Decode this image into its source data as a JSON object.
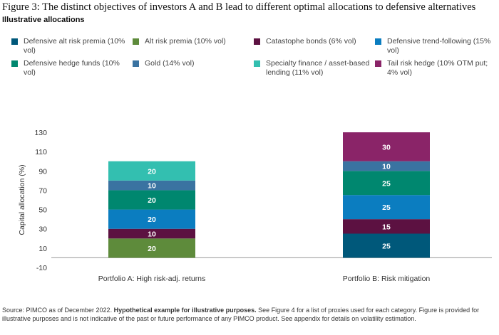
{
  "title": "Figure 3: The distinct objectives of investors A and B lead to different optimal allocations to defensive alternatives",
  "subtitle": "Illustrative allocations",
  "source": {
    "prefix": "Source: PIMCO as of December 2022. ",
    "bold": "Hypothetical example for illustrative purposes.",
    "suffix": " See Figure 4 for a list of proxies used for each category. Figure is provided for illustrative purposes and is not indicative of the past or future performance of any PIMCO product. See appendix for details on volatility estimation."
  },
  "chart_data": {
    "type": "bar",
    "stacked": true,
    "title": "",
    "xlabel": "",
    "ylabel": "Capital allocation (%)",
    "ylim": [
      -10,
      130
    ],
    "yticks": [
      130,
      110,
      90,
      70,
      50,
      30,
      10,
      -10
    ],
    "grid": false,
    "legend_position": "top",
    "categories": [
      "Portfolio A: High risk-adj. returns",
      "Portfolio B: Risk mitigation"
    ],
    "series": [
      {
        "name": "Defensive alt risk premia (10% vol)",
        "color": "#00587A",
        "values": [
          0,
          25
        ]
      },
      {
        "name": "Alt risk premia (10% vol)",
        "color": "#5E8B3B",
        "values": [
          20,
          0
        ]
      },
      {
        "name": "Catastophe bonds (6% vol)",
        "color": "#5C1141",
        "values": [
          10,
          15
        ]
      },
      {
        "name": "Defensive trend-following (15% vol)",
        "color": "#0B7DC0",
        "values": [
          20,
          25
        ]
      },
      {
        "name": "Defensive hedge funds (10% vol)",
        "color": "#00876F",
        "values": [
          20,
          25
        ]
      },
      {
        "name": "Gold (14% vol)",
        "color": "#3A73A1",
        "values": [
          10,
          10
        ]
      },
      {
        "name": "Specialty finance / asset-based lending (11% vol)",
        "color": "#33BFB0",
        "values": [
          20,
          0
        ]
      },
      {
        "name": "Tail risk hedge (10% OTM put; 4% vol)",
        "color": "#8A2468",
        "values": [
          0,
          30
        ]
      }
    ]
  }
}
